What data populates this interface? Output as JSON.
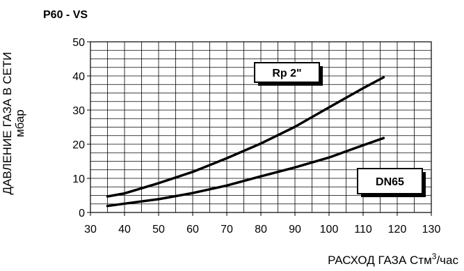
{
  "chart_data": {
    "type": "line",
    "title": "P60 - VS",
    "xlabel": "РАСХОД ГАЗА Стм",
    "xlabel_sup": "3",
    "xlabel_suffix": "/час",
    "ylabel_line1": "ДАВЛЕНИЕ ГАЗА В СЕТИ",
    "ylabel_line2": "мбар",
    "xlim": [
      30,
      130
    ],
    "ylim": [
      0,
      50
    ],
    "x_ticks": [
      30,
      40,
      50,
      60,
      70,
      80,
      90,
      100,
      110,
      120,
      130
    ],
    "y_ticks": [
      0,
      10,
      20,
      30,
      40,
      50
    ],
    "x_tick_labels": [
      "30",
      "40",
      "50",
      "60",
      "70",
      "80",
      "90",
      "100",
      "110",
      "120",
      "130"
    ],
    "y_tick_labels": [
      "0",
      "10",
      "20",
      "30",
      "40",
      "50"
    ],
    "grid": "on",
    "series": [
      {
        "name": "Rp 2\"",
        "x": [
          35,
          40,
          50,
          60,
          70,
          80,
          90,
          100,
          110,
          116
        ],
        "y": [
          4.7,
          5.6,
          8.6,
          11.9,
          15.9,
          20.2,
          25.1,
          30.8,
          36.4,
          39.6
        ]
      },
      {
        "name": "DN65",
        "x": [
          35,
          40,
          50,
          60,
          70,
          80,
          90,
          100,
          110,
          116
        ],
        "y": [
          1.9,
          2.6,
          3.9,
          5.7,
          7.9,
          10.6,
          13.2,
          16.1,
          19.7,
          21.8
        ]
      }
    ]
  }
}
